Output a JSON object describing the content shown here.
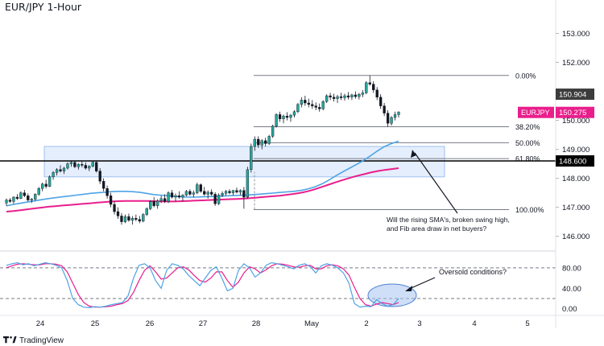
{
  "chart_data": {
    "type": "candlestick",
    "title": "EUR/JPY 1-Hour",
    "brand": "TradingView",
    "price_axis": {
      "ticks": [
        153.0,
        152.0,
        151.0,
        150.0,
        149.0,
        148.0,
        147.0,
        146.0
      ],
      "tick_labels": [
        "153.000",
        "152.000",
        "151.000",
        "150.000",
        "149.000",
        "148.000",
        "147.000",
        "146.000"
      ],
      "range": [
        145.6,
        153.6
      ]
    },
    "time_axis": {
      "labels": [
        "24",
        "25",
        "26",
        "27",
        "28",
        "May",
        "2",
        "3",
        "4",
        "5"
      ]
    },
    "price_tags": [
      {
        "label": "150.904",
        "value": 150.904,
        "color": "#3c3c3c"
      },
      {
        "label": "EURJPY",
        "value": 150.275,
        "color": "#e91e8c"
      },
      {
        "label": "150.275",
        "value": 150.275,
        "color": "#e91e8c"
      },
      {
        "label": "148.600",
        "value": 148.6,
        "color": "#000000"
      }
    ],
    "horizontal_line": {
      "value": 148.6,
      "color": "#000000"
    },
    "fibonacci": {
      "levels": [
        {
          "label": "0.00%",
          "value": 151.55
        },
        {
          "label": "38.20%",
          "value": 149.78
        },
        {
          "label": "50.00%",
          "value": 149.23
        },
        {
          "label": "61.80%",
          "value": 148.68
        },
        {
          "label": "100.00%",
          "value": 146.92
        }
      ]
    },
    "zone": {
      "low": 148.05,
      "high": 149.1,
      "color": "#cfe0fa"
    },
    "candles_ohlc": [
      [
        147.15,
        147.3,
        147.05,
        147.25
      ],
      [
        147.25,
        147.32,
        147.15,
        147.2
      ],
      [
        147.2,
        147.38,
        147.12,
        147.35
      ],
      [
        147.35,
        147.45,
        147.25,
        147.3
      ],
      [
        147.3,
        147.55,
        147.28,
        147.5
      ],
      [
        147.5,
        147.6,
        147.35,
        147.4
      ],
      [
        147.4,
        147.48,
        147.2,
        147.25
      ],
      [
        147.25,
        147.32,
        147.15,
        147.28
      ],
      [
        147.28,
        147.48,
        147.22,
        147.45
      ],
      [
        147.45,
        147.7,
        147.4,
        147.65
      ],
      [
        147.65,
        147.85,
        147.55,
        147.8
      ],
      [
        147.8,
        147.95,
        147.65,
        147.72
      ],
      [
        147.72,
        148.1,
        147.7,
        148.05
      ],
      [
        148.05,
        148.25,
        147.95,
        148.2
      ],
      [
        148.2,
        148.35,
        148.1,
        148.3
      ],
      [
        148.3,
        148.45,
        148.2,
        148.25
      ],
      [
        148.25,
        148.4,
        148.15,
        148.35
      ],
      [
        148.35,
        148.55,
        148.3,
        148.5
      ],
      [
        148.5,
        148.62,
        148.4,
        148.55
      ],
      [
        148.55,
        148.62,
        148.35,
        148.4
      ],
      [
        148.4,
        148.52,
        148.3,
        148.48
      ],
      [
        148.48,
        148.58,
        148.38,
        148.45
      ],
      [
        148.45,
        148.55,
        148.3,
        148.35
      ],
      [
        148.35,
        148.45,
        148.25,
        148.42
      ],
      [
        148.42,
        148.6,
        148.38,
        148.55
      ],
      [
        148.55,
        148.58,
        148.2,
        148.25
      ],
      [
        148.25,
        148.35,
        147.8,
        147.9
      ],
      [
        147.9,
        148.0,
        147.55,
        147.65
      ],
      [
        147.65,
        147.75,
        147.3,
        147.4
      ],
      [
        147.4,
        147.5,
        147.0,
        147.1
      ],
      [
        147.1,
        147.2,
        146.75,
        146.85
      ],
      [
        146.85,
        147.0,
        146.6,
        146.7
      ],
      [
        146.7,
        146.8,
        146.4,
        146.5
      ],
      [
        146.5,
        146.75,
        146.45,
        146.68
      ],
      [
        146.68,
        146.78,
        146.5,
        146.55
      ],
      [
        146.55,
        146.7,
        146.4,
        146.62
      ],
      [
        146.62,
        146.75,
        146.52,
        146.58
      ],
      [
        146.58,
        146.7,
        146.45,
        146.52
      ],
      [
        146.52,
        146.8,
        146.48,
        146.75
      ],
      [
        146.75,
        147.0,
        146.7,
        146.95
      ],
      [
        146.95,
        147.25,
        146.9,
        147.2
      ],
      [
        147.2,
        147.35,
        147.0,
        147.05
      ],
      [
        147.05,
        147.28,
        146.95,
        147.22
      ],
      [
        147.22,
        147.4,
        147.15,
        147.3
      ],
      [
        147.3,
        147.45,
        147.15,
        147.2
      ],
      [
        147.2,
        147.55,
        147.15,
        147.5
      ],
      [
        147.5,
        147.6,
        147.3,
        147.35
      ],
      [
        147.35,
        147.48,
        147.2,
        147.4
      ],
      [
        147.4,
        147.55,
        147.3,
        147.35
      ],
      [
        147.35,
        147.45,
        147.2,
        147.42
      ],
      [
        147.42,
        147.6,
        147.38,
        147.55
      ],
      [
        147.55,
        147.62,
        147.4,
        147.45
      ],
      [
        147.45,
        147.58,
        147.35,
        147.5
      ],
      [
        147.5,
        147.85,
        147.45,
        147.78
      ],
      [
        147.78,
        147.82,
        147.5,
        147.55
      ],
      [
        147.55,
        147.7,
        147.4,
        147.45
      ],
      [
        147.45,
        147.58,
        147.3,
        147.52
      ],
      [
        147.52,
        147.62,
        147.4,
        147.45
      ],
      [
        147.45,
        147.52,
        147.05,
        147.12
      ],
      [
        147.12,
        147.48,
        147.08,
        147.42
      ],
      [
        147.42,
        147.55,
        147.35,
        147.48
      ],
      [
        147.48,
        147.6,
        147.4,
        147.55
      ],
      [
        147.55,
        147.62,
        147.45,
        147.5
      ],
      [
        147.5,
        147.6,
        147.42,
        147.58
      ],
      [
        147.58,
        147.68,
        147.48,
        147.52
      ],
      [
        147.52,
        147.62,
        147.42,
        147.58
      ],
      [
        147.58,
        147.7,
        146.95,
        147.35
      ],
      [
        147.35,
        148.4,
        147.3,
        148.3
      ],
      [
        148.3,
        149.2,
        148.2,
        149.1
      ],
      [
        149.1,
        149.45,
        148.95,
        149.35
      ],
      [
        149.35,
        149.45,
        149.05,
        149.15
      ],
      [
        149.15,
        149.35,
        149.0,
        149.3
      ],
      [
        149.3,
        149.4,
        149.1,
        149.2
      ],
      [
        149.2,
        149.5,
        149.15,
        149.45
      ],
      [
        149.45,
        149.85,
        149.4,
        149.8
      ],
      [
        149.8,
        150.25,
        149.75,
        150.2
      ],
      [
        150.2,
        150.3,
        149.95,
        150.05
      ],
      [
        150.05,
        150.2,
        149.9,
        150.15
      ],
      [
        150.15,
        150.28,
        150.0,
        150.1
      ],
      [
        150.1,
        150.22,
        149.95,
        150.18
      ],
      [
        150.18,
        150.35,
        150.1,
        150.3
      ],
      [
        150.3,
        150.6,
        150.25,
        150.55
      ],
      [
        150.55,
        150.8,
        150.45,
        150.7
      ],
      [
        150.7,
        150.85,
        150.5,
        150.6
      ],
      [
        150.6,
        150.75,
        150.45,
        150.55
      ],
      [
        150.55,
        150.7,
        150.4,
        150.5
      ],
      [
        150.5,
        150.62,
        150.35,
        150.45
      ],
      [
        150.45,
        150.58,
        150.3,
        150.4
      ],
      [
        150.4,
        150.7,
        150.35,
        150.65
      ],
      [
        150.65,
        150.9,
        150.6,
        150.85
      ],
      [
        150.85,
        150.95,
        150.7,
        150.8
      ],
      [
        150.8,
        150.92,
        150.65,
        150.75
      ],
      [
        150.75,
        150.88,
        150.6,
        150.82
      ],
      [
        150.82,
        150.95,
        150.7,
        150.78
      ],
      [
        150.78,
        150.92,
        150.68,
        150.85
      ],
      [
        150.85,
        150.98,
        150.72,
        150.8
      ],
      [
        150.8,
        150.92,
        150.7,
        150.88
      ],
      [
        150.88,
        151.0,
        150.75,
        150.82
      ],
      [
        150.82,
        150.95,
        150.72,
        150.9
      ],
      [
        150.9,
        151.05,
        150.8,
        150.95
      ],
      [
        150.95,
        151.35,
        150.9,
        151.3
      ],
      [
        151.3,
        151.55,
        151.2,
        151.25
      ],
      [
        151.25,
        151.35,
        150.95,
        151.05
      ],
      [
        151.05,
        151.15,
        150.7,
        150.8
      ],
      [
        150.8,
        150.9,
        150.4,
        150.5
      ],
      [
        150.5,
        150.6,
        150.15,
        150.25
      ],
      [
        150.25,
        150.35,
        149.78,
        149.9
      ],
      [
        149.9,
        150.15,
        149.82,
        150.1
      ],
      [
        150.1,
        150.3,
        150.0,
        150.2
      ],
      [
        150.2,
        150.32,
        150.1,
        150.28
      ]
    ],
    "sma_fast": {
      "color": "#4da3e6",
      "values": [
        147.05,
        147.1,
        147.14,
        147.18,
        147.22,
        147.26,
        147.3,
        147.33,
        147.36,
        147.39,
        147.42,
        147.45,
        147.48,
        147.5,
        147.52,
        147.54,
        147.55,
        147.55,
        147.54,
        147.52,
        147.48,
        147.44,
        147.42,
        147.4,
        147.38,
        147.36,
        147.35,
        147.35,
        147.36,
        147.37,
        147.38,
        147.39,
        147.4,
        147.41,
        147.42,
        147.43,
        147.45,
        147.47,
        147.49,
        147.51,
        147.53,
        147.55,
        147.58,
        147.63,
        147.7,
        147.8,
        147.93,
        148.08,
        148.22,
        148.35,
        148.48,
        148.62,
        148.78,
        148.95,
        149.1,
        149.2,
        149.28
      ]
    },
    "sma_slow": {
      "color": "#e91e8c",
      "values": [
        146.85,
        146.87,
        146.9,
        146.93,
        146.96,
        146.99,
        147.02,
        147.04,
        147.06,
        147.08,
        147.1,
        147.12,
        147.14,
        147.16,
        147.18,
        147.2,
        147.21,
        147.22,
        147.22,
        147.22,
        147.22,
        147.21,
        147.2,
        147.2,
        147.2,
        147.21,
        147.22,
        147.23,
        147.24,
        147.25,
        147.26,
        147.27,
        147.28,
        147.29,
        147.3,
        147.32,
        147.34,
        147.36,
        147.38,
        147.4,
        147.43,
        147.46,
        147.5,
        147.55,
        147.62,
        147.7,
        147.78,
        147.86,
        147.94,
        148.01,
        148.08,
        148.14,
        148.2,
        148.25,
        148.29,
        148.32,
        148.35
      ]
    },
    "stochastic": {
      "ticks": [
        80.0,
        40.0,
        0.0
      ],
      "tick_labels": [
        "80.00",
        "40.00",
        "0.00"
      ],
      "range": [
        -10,
        105
      ],
      "levels": [
        80,
        20
      ],
      "k_color": "#4da3e6",
      "d_color": "#e91e8c",
      "k": [
        85,
        88,
        90,
        86,
        88,
        84,
        87,
        90,
        88,
        85,
        80,
        55,
        20,
        8,
        3,
        2,
        4,
        3,
        5,
        8,
        10,
        12,
        25,
        60,
        85,
        88,
        80,
        55,
        40,
        75,
        88,
        85,
        78,
        65,
        55,
        45,
        60,
        75,
        82,
        60,
        35,
        40,
        75,
        88,
        80,
        62,
        70,
        85,
        90,
        88,
        85,
        82,
        78,
        85,
        88,
        82,
        70,
        84,
        88,
        85,
        80,
        70,
        50,
        10,
        3,
        5,
        4,
        18,
        10,
        5,
        8,
        20
      ],
      "d": [
        80,
        84,
        87,
        88,
        87,
        86,
        86,
        88,
        88,
        87,
        84,
        72,
        50,
        28,
        12,
        5,
        3,
        3,
        4,
        5,
        8,
        10,
        16,
        32,
        55,
        75,
        84,
        72,
        58,
        60,
        70,
        80,
        82,
        76,
        65,
        55,
        52,
        60,
        72,
        72,
        55,
        42,
        52,
        70,
        82,
        78,
        70,
        76,
        84,
        88,
        87,
        85,
        82,
        81,
        84,
        85,
        78,
        78,
        84,
        86,
        84,
        78,
        66,
        42,
        20,
        8,
        5,
        9,
        12,
        10,
        8,
        12
      ]
    },
    "annotations": [
      {
        "text_lines": [
          "Will the rising SMA's, broken swing high,",
          "and Fib area draw in net buyers?"
        ]
      },
      {
        "text": "Oversold conditions?"
      }
    ]
  }
}
